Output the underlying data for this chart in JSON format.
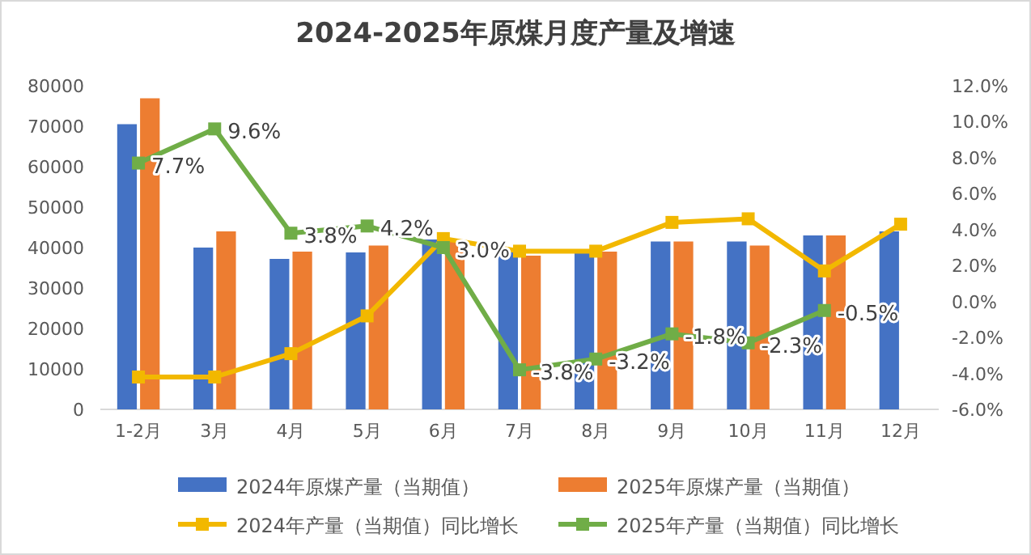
{
  "chart_data": {
    "type": "bar",
    "title": "2024-2025年原煤月度产量及增速",
    "categories": [
      "1-2月",
      "3月",
      "4月",
      "5月",
      "6月",
      "7月",
      "8月",
      "9月",
      "10月",
      "11月",
      "12月"
    ],
    "series": [
      {
        "name": "2024年原煤产量（当期值）",
        "color": "#4472c4",
        "values": [
          70500,
          40000,
          37200,
          38800,
          42000,
          39000,
          39500,
          41500,
          41500,
          43000,
          44000
        ]
      },
      {
        "name": "2025年原煤产量（当期值）",
        "color": "#ed7d31",
        "values": [
          76900,
          44000,
          39000,
          40500,
          42000,
          38000,
          39000,
          41500,
          40500,
          43000,
          null
        ]
      },
      {
        "name": "2024年产量（当期值）同比增长",
        "type": "line",
        "axis": "y2",
        "marker": "square",
        "color": "#f2b800",
        "values": [
          -4.2,
          -4.2,
          -2.9,
          -0.8,
          3.5,
          2.8,
          2.8,
          4.4,
          4.6,
          1.7,
          4.3
        ]
      },
      {
        "name": "2025年产量（当期值）同比增长",
        "type": "line",
        "axis": "y2",
        "marker": "square",
        "color": "#70ad47",
        "values": [
          7.7,
          9.6,
          3.8,
          4.2,
          3.0,
          -3.8,
          -3.2,
          -1.8,
          -2.3,
          -0.5,
          null
        ],
        "value_labels": [
          "7.7%",
          "9.6%",
          "3.8%",
          "4.2%",
          "3.0%",
          "-3.8%",
          "-3.2%",
          "-1.8%",
          "-2.3%",
          "-0.5%",
          null
        ]
      }
    ],
    "ylim": [
      0,
      80000
    ],
    "yticks": [
      0,
      10000,
      20000,
      30000,
      40000,
      50000,
      60000,
      70000,
      80000
    ],
    "y2lim": [
      -6,
      12
    ],
    "y2ticks": [
      {
        "value": -6,
        "label": "-6.0%"
      },
      {
        "value": -4,
        "label": "-4.0%"
      },
      {
        "value": -2,
        "label": "-2.0%"
      },
      {
        "value": 0,
        "label": "0.0%"
      },
      {
        "value": 2,
        "label": "2.0%"
      },
      {
        "value": 4,
        "label": "4.0%"
      },
      {
        "value": 6,
        "label": "6.0%"
      },
      {
        "value": 8,
        "label": "8.0%"
      },
      {
        "value": 10,
        "label": "10.0%"
      },
      {
        "value": 12,
        "label": "12.0%"
      }
    ],
    "legend": "bottom"
  }
}
